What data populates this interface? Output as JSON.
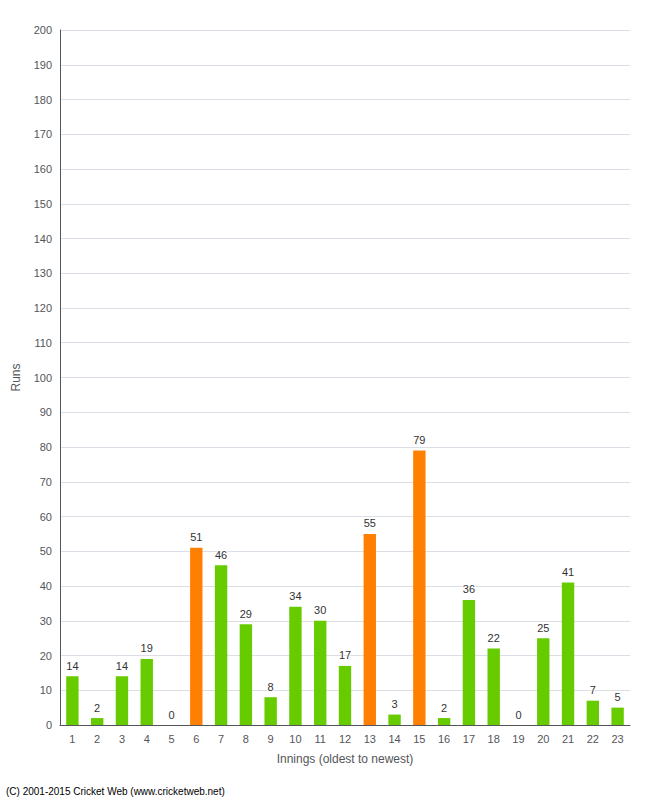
{
  "chart_data": {
    "type": "bar",
    "xlabel": "Innings (oldest to newest)",
    "ylabel": "Runs",
    "categories": [
      "1",
      "2",
      "3",
      "4",
      "5",
      "6",
      "7",
      "8",
      "9",
      "10",
      "11",
      "12",
      "13",
      "14",
      "15",
      "16",
      "17",
      "18",
      "19",
      "20",
      "21",
      "22",
      "23"
    ],
    "values": [
      14,
      2,
      14,
      19,
      0,
      51,
      46,
      29,
      8,
      34,
      30,
      17,
      55,
      3,
      79,
      2,
      36,
      22,
      0,
      25,
      41,
      7,
      5
    ],
    "colors": [
      "#66cc00",
      "#66cc00",
      "#66cc00",
      "#66cc00",
      "#66cc00",
      "#ff8000",
      "#66cc00",
      "#66cc00",
      "#66cc00",
      "#66cc00",
      "#66cc00",
      "#66cc00",
      "#ff8000",
      "#66cc00",
      "#ff8000",
      "#66cc00",
      "#66cc00",
      "#66cc00",
      "#66cc00",
      "#66cc00",
      "#66cc00",
      "#66cc00",
      "#66cc00"
    ],
    "ylim": [
      0,
      200
    ],
    "yticks": [
      0,
      10,
      20,
      30,
      40,
      50,
      60,
      70,
      80,
      90,
      100,
      110,
      120,
      130,
      140,
      150,
      160,
      170,
      180,
      190,
      200
    ],
    "grid": true,
    "data_labels": true,
    "annotation": "(C) 2001-2015 Cricket Web (www.cricketweb.net)"
  }
}
